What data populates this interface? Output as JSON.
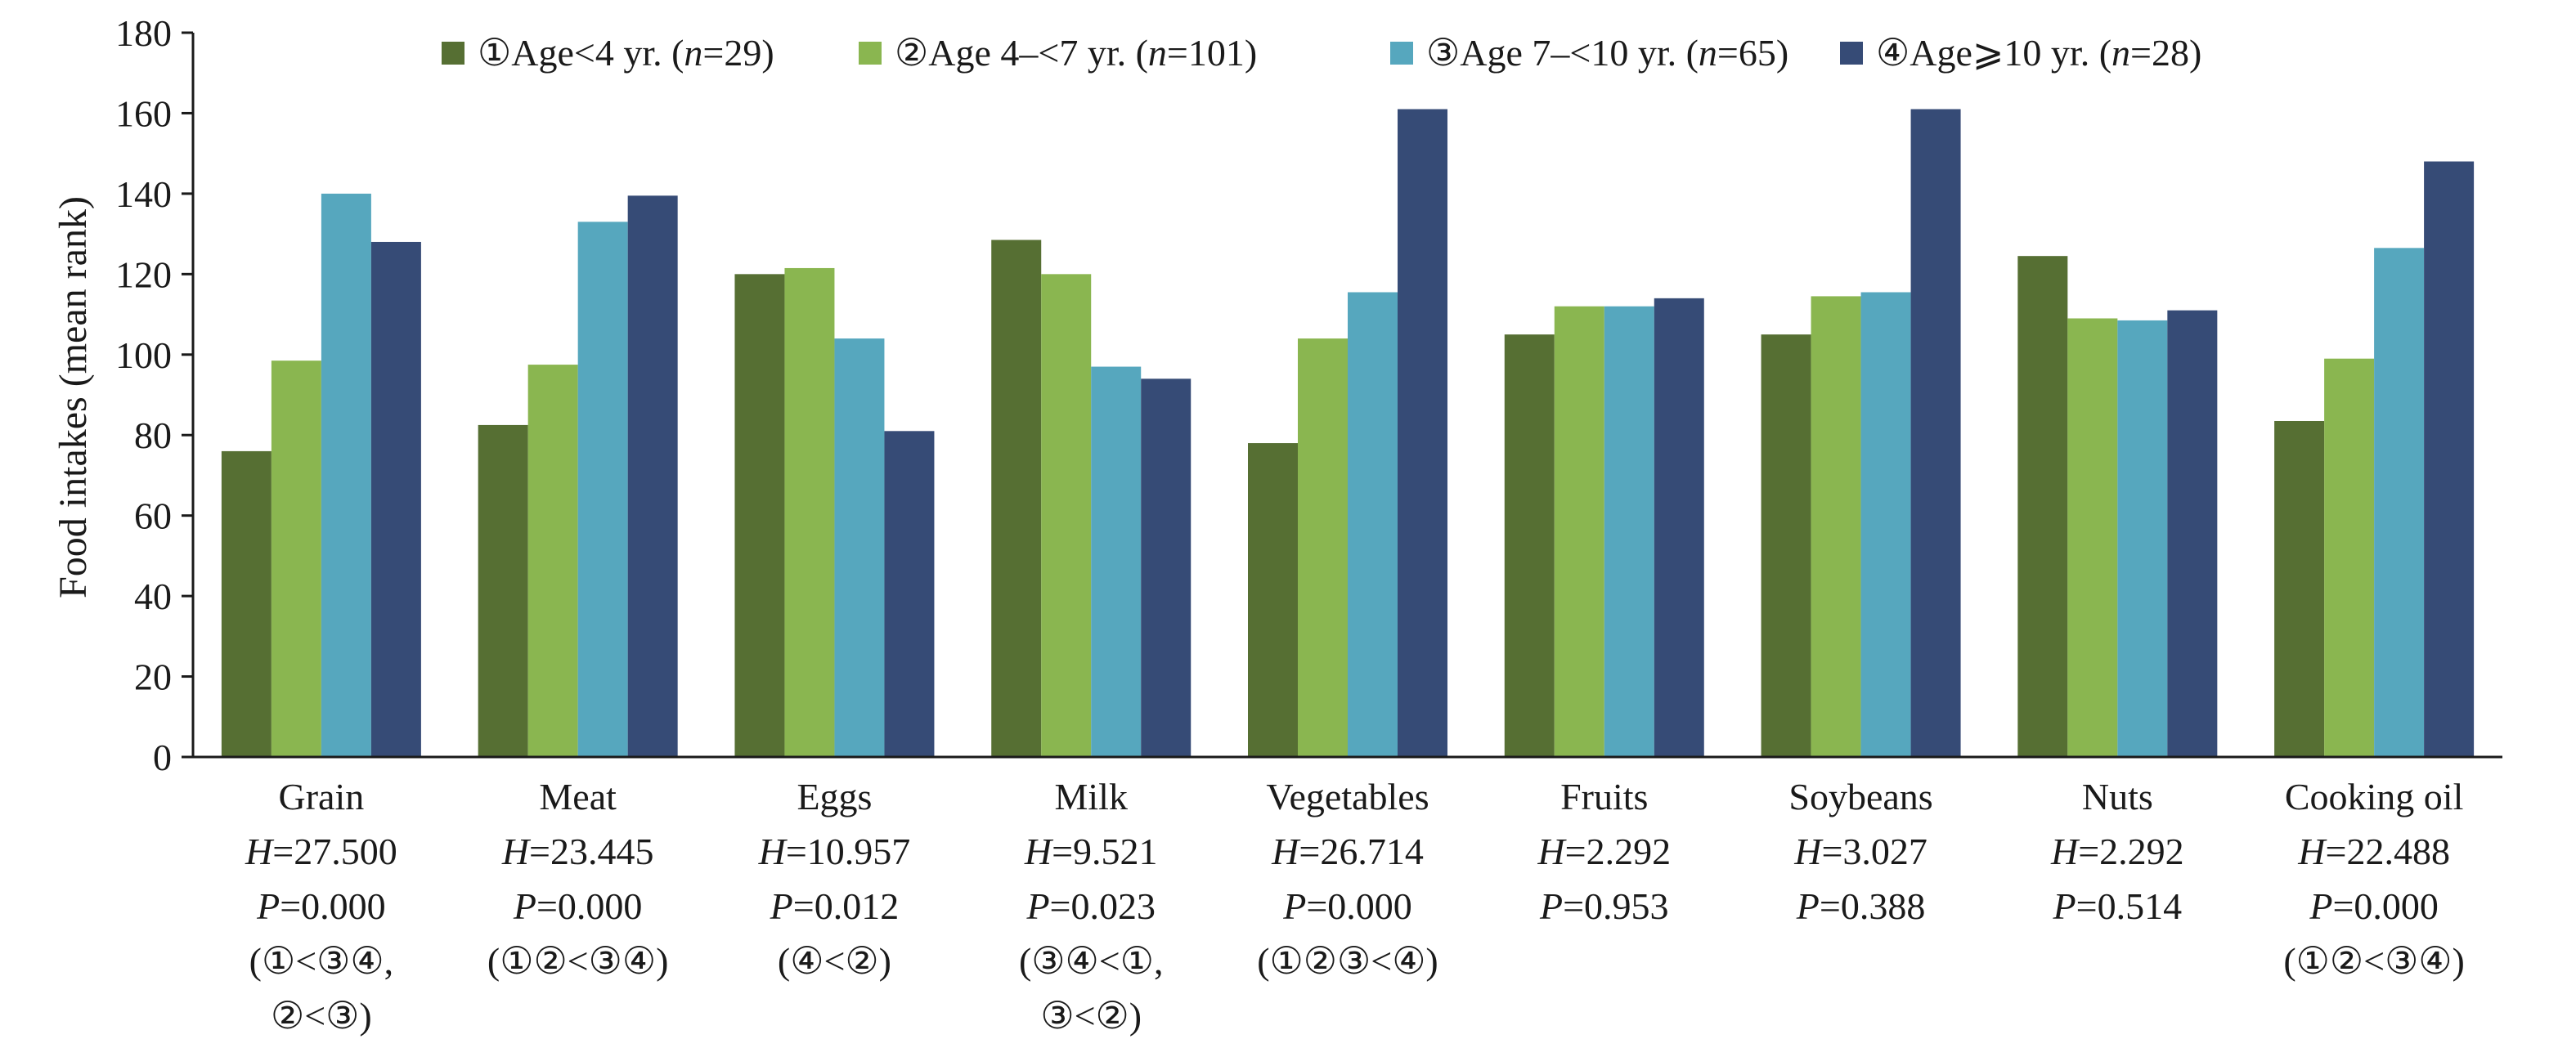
{
  "chart_data": {
    "type": "bar",
    "title": "",
    "ylabel": "Food intakes (mean rank)",
    "xlabel": "",
    "ylim": [
      0,
      180
    ],
    "yticks": [
      0,
      20,
      40,
      60,
      80,
      100,
      120,
      140,
      160,
      180
    ],
    "grid": false,
    "legend_position": "top",
    "categories": [
      "Grain",
      "Meat",
      "Eggs",
      "Milk",
      "Vegetables",
      "Fruits",
      "Soybeans",
      "Nuts",
      "Cooking oil"
    ],
    "series": [
      {
        "name": "①Age<4 yr. (n=29)",
        "name_parts": [
          "①Age<4 yr. (",
          "n",
          "=29)"
        ],
        "color": "#566f33",
        "values": [
          76,
          82.5,
          120,
          128.5,
          78,
          105,
          105,
          124.5,
          83.5
        ]
      },
      {
        "name": "②Age 4–<7 yr. (n=101)",
        "name_parts": [
          "②Age 4–<7 yr. (",
          "n",
          "=101)"
        ],
        "color": "#8ab650",
        "values": [
          98.5,
          97.5,
          121.5,
          120,
          104,
          112,
          114.5,
          109,
          99
        ]
      },
      {
        "name": "③Age 7–<10 yr. (n=65)",
        "name_parts": [
          "③Age 7–<10 yr. (",
          "n",
          "=65)"
        ],
        "color": "#56a7be",
        "values": [
          140,
          133,
          104,
          97,
          115.5,
          112,
          115.5,
          108.5,
          126.5
        ]
      },
      {
        "name": "④Age⩾10 yr. (n=28)",
        "name_parts": [
          "④Age⩾10 yr. (",
          "n",
          "=28)"
        ],
        "color": "#364b76",
        "values": [
          128,
          139.5,
          81,
          94,
          161,
          114,
          161,
          111,
          148
        ]
      }
    ],
    "stats": [
      {
        "H": "=27.500",
        "P": "=0.000",
        "notes": [
          "(①<③④,",
          "②<③)"
        ]
      },
      {
        "H": "=23.445",
        "P": "=0.000",
        "notes": [
          "(①②<③④)"
        ]
      },
      {
        "H": "=10.957",
        "P": "=0.012",
        "notes": [
          "(④<②)"
        ]
      },
      {
        "H": "=9.521",
        "P": "=0.023",
        "notes": [
          "(③④<①,",
          "③<②)"
        ]
      },
      {
        "H": "=26.714",
        "P": "=0.000",
        "notes": [
          "(①②③<④)"
        ]
      },
      {
        "H": "=2.292",
        "P": "=0.953",
        "notes": []
      },
      {
        "H": "=3.027",
        "P": "=0.388",
        "notes": []
      },
      {
        "H": "=2.292",
        "P": "=0.514",
        "notes": []
      },
      {
        "H": "=22.488",
        "P": "=0.000",
        "notes": [
          "(①②<③④)"
        ]
      }
    ],
    "stat_letters": {
      "H": "H",
      "P": "P"
    }
  }
}
